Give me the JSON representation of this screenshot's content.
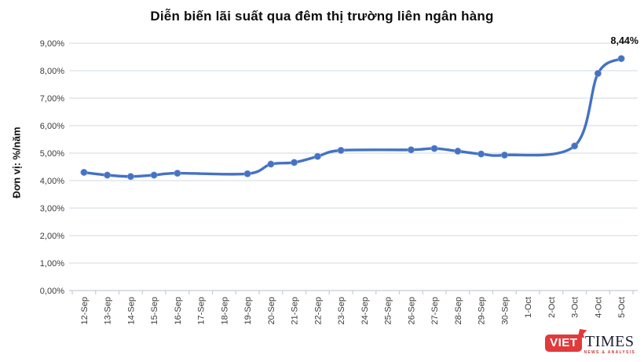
{
  "title": "Diễn biến lãi suất qua đêm thị trường liên ngân hàng",
  "annotation": "8,44%",
  "logo": {
    "viet": "VIET",
    "times": "TIMES",
    "tagline": "NEWS & ANALYSIS"
  },
  "colors": {
    "line": "#4472c4",
    "marker": "#4472c4",
    "grid": "#dbe0e8",
    "axis": "#c6ccd6",
    "tick_text": "#3a3a3a",
    "title_text": "#0d0d0d",
    "logo_red": "#e03a3c",
    "logo_dark": "#1d1d38"
  },
  "chart_data": {
    "type": "line",
    "smooth": true,
    "grid": "horizontal",
    "legend": false,
    "title": "Diễn biến lãi suất qua đêm thị trường liên ngân hàng",
    "xlabel": "",
    "ylabel": "Đơn vị: %/năm",
    "ylim": [
      0,
      9
    ],
    "ytick_step": 1,
    "ytick_labels": [
      "0,00%",
      "1,00%",
      "2,00%",
      "3,00%",
      "4,00%",
      "5,00%",
      "6,00%",
      "7,00%",
      "8,00%",
      "9,00%"
    ],
    "x": [
      "12-Sep",
      "13-Sep",
      "14-Sep",
      "15-Sep",
      "16-Sep",
      "17-Sep",
      "18-Sep",
      "19-Sep",
      "20-Sep",
      "21-Sep",
      "22-Sep",
      "23-Sep",
      "24-Sep",
      "25-Sep",
      "26-Sep",
      "27-Sep",
      "28-Sep",
      "29-Sep",
      "30-Sep",
      "1-Oct",
      "2-Oct",
      "3-Oct",
      "4-Oct",
      "5-Oct"
    ],
    "series": [
      {
        "name": "",
        "values": [
          4.3,
          4.2,
          4.15,
          4.2,
          4.27,
          null,
          null,
          4.25,
          4.6,
          4.66,
          4.88,
          5.1,
          null,
          null,
          5.12,
          5.17,
          5.07,
          4.97,
          4.93,
          null,
          null,
          5.26,
          7.9,
          8.44
        ],
        "last_point_label": "8,44%"
      }
    ]
  }
}
